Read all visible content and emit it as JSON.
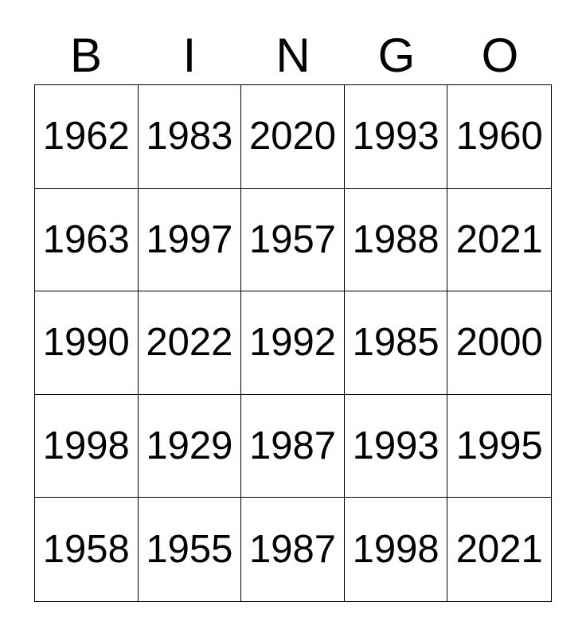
{
  "card_title": "BINGO",
  "header_letters": [
    "B",
    "I",
    "N",
    "G",
    "O"
  ],
  "grid_rows": [
    [
      "1962",
      "1983",
      "2020",
      "1993",
      "1960"
    ],
    [
      "1963",
      "1997",
      "1957",
      "1988",
      "2021"
    ],
    [
      "1990",
      "2022",
      "1992",
      "1985",
      "2000"
    ],
    [
      "1998",
      "1929",
      "1987",
      "1993",
      "1995"
    ],
    [
      "1958",
      "1955",
      "1987",
      "1998",
      "2021"
    ]
  ],
  "colors": {
    "background": "#ffffff",
    "grid_border": "#000000",
    "text": "#000000"
  }
}
